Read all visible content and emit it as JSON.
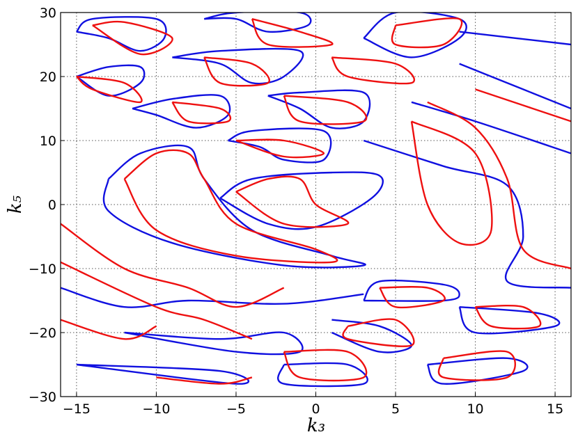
{
  "chart_data": {
    "type": "contour",
    "xlabel": "k₃",
    "ylabel": "k₅",
    "xlim": [
      -16,
      16
    ],
    "ylim": [
      -30,
      30
    ],
    "xticks": [
      {
        "value": -15,
        "label": "−15"
      },
      {
        "value": -10,
        "label": "−10"
      },
      {
        "value": -5,
        "label": "−5"
      },
      0,
      5,
      10,
      15
    ],
    "yticks": [
      {
        "value": -30,
        "label": "−30"
      },
      {
        "value": -20,
        "label": "−20"
      },
      {
        "value": -10,
        "label": "−10"
      },
      0,
      10,
      20,
      30
    ],
    "grid": true,
    "series": [
      {
        "color": "#1010e0",
        "x": [
          -15,
          -14,
          -10,
          -9.5,
          -11,
          -13,
          -15,
          null,
          -7,
          -5,
          -1,
          -0.5,
          -3,
          -5,
          -7,
          null,
          -15,
          -13,
          -11,
          -11,
          -13,
          -15,
          null,
          -9,
          -6,
          -1,
          -2,
          -4,
          -6,
          -9,
          null,
          -11.5,
          -9,
          -6,
          -5.5,
          -7.5,
          -10,
          -11.5,
          null,
          -3,
          -1,
          3,
          3,
          1,
          -1,
          -3,
          null,
          -5.5,
          -4,
          0.5,
          0.5,
          -2,
          -3.5,
          -5.5,
          null,
          -6,
          -4,
          1,
          4,
          3.5,
          0,
          -3,
          -6,
          null,
          -13,
          -11,
          -8,
          -7,
          -4,
          1,
          3,
          -2,
          -9,
          -13,
          -13,
          null,
          3,
          5,
          9,
          9,
          6,
          3,
          null,
          9,
          16,
          null,
          9,
          13,
          16,
          null,
          6,
          10,
          16,
          null,
          3,
          8,
          12,
          13,
          12,
          16,
          null,
          -16,
          -12,
          -8,
          -2,
          3,
          null,
          -12,
          -6,
          -2,
          -1,
          -5,
          -12,
          null,
          -15,
          -6,
          -5,
          -15,
          null,
          1,
          4,
          6,
          4,
          1,
          null,
          3,
          8,
          9,
          8,
          4,
          3,
          null,
          9,
          14,
          15,
          10,
          9,
          null,
          7,
          12,
          13,
          8,
          7,
          null,
          -2,
          2,
          3,
          -2,
          -2
        ],
        "values": [
          27,
          29,
          29,
          26,
          24,
          26,
          27,
          null,
          29,
          30,
          30,
          28,
          27,
          29,
          29,
          null,
          20,
          21.5,
          21.5,
          19,
          17,
          20,
          null,
          23,
          24,
          24,
          20,
          19,
          22,
          23,
          null,
          15,
          16.5,
          17,
          14,
          12,
          14,
          15,
          null,
          17,
          17.5,
          17.5,
          13,
          12,
          15,
          17,
          null,
          10,
          11.5,
          11.5,
          7,
          7,
          9,
          10,
          null,
          1,
          4,
          5,
          4.5,
          1,
          -3.5,
          -3,
          1,
          null,
          4,
          8,
          9,
          4,
          -4,
          -8,
          -9.5,
          -9.5,
          -6,
          -1,
          4,
          null,
          26,
          30,
          29,
          26,
          23,
          26,
          null,
          27,
          25,
          null,
          22,
          18,
          15,
          null,
          16,
          13,
          8,
          null,
          10,
          6,
          3,
          -5,
          -12,
          -13,
          null,
          -13,
          -16,
          -15,
          -15.5,
          -14,
          null,
          -20,
          -21,
          -20,
          -23,
          -23,
          -20,
          null,
          -25,
          -26,
          -28,
          -25,
          null,
          -18,
          -19,
          -22,
          -23,
          -20,
          null,
          -15,
          -15,
          -14,
          -12.5,
          -12,
          -15,
          null,
          -16,
          -17,
          -19,
          -20,
          -16,
          null,
          -25,
          -24,
          -26,
          -28,
          -25,
          null,
          -25,
          -25,
          -28,
          -28,
          -25
        ]
      },
      {
        "color": "#ee1010",
        "x": [
          -14,
          -12,
          -9,
          -11,
          -14,
          null,
          -4,
          -1,
          1,
          -3,
          -4,
          null,
          -15,
          -12,
          -11,
          -14,
          -15,
          null,
          -7,
          -4,
          -3,
          -6,
          -7,
          null,
          -9,
          -6,
          -5.5,
          -8,
          -9,
          null,
          -2,
          2,
          3,
          -1,
          -2,
          null,
          -5,
          -2,
          0.5,
          -2,
          -5,
          null,
          -5,
          -3,
          -1,
          0,
          2,
          -2,
          -5,
          null,
          -12,
          -10,
          -8,
          -7,
          -5,
          0,
          1,
          -5,
          -10,
          -12,
          null,
          5,
          9,
          8,
          5,
          5,
          null,
          1,
          5,
          6,
          2,
          1,
          null,
          7,
          10,
          12,
          13,
          16,
          null,
          10,
          16,
          null,
          6,
          10,
          11,
          9,
          7,
          6,
          null,
          -16,
          -12,
          -8,
          -5,
          -2,
          null,
          -16,
          -10,
          -7,
          -4,
          null,
          -16,
          -12,
          -10,
          null,
          -10,
          -6,
          -4,
          null,
          2,
          5,
          6,
          2,
          2,
          null,
          4,
          7,
          8,
          5,
          4,
          null,
          10,
          13,
          14,
          11,
          10,
          null,
          -2,
          2,
          3,
          -1,
          -2,
          null,
          8,
          12,
          12,
          8,
          8
        ],
        "values": [
          28,
          28.5,
          26,
          23.5,
          28,
          null,
          29,
          27,
          25,
          25,
          29,
          null,
          20,
          19,
          16,
          18,
          20,
          null,
          23,
          22,
          19,
          19,
          23,
          null,
          16,
          15,
          13,
          13,
          16,
          null,
          17,
          16,
          13,
          13,
          17,
          null,
          10,
          10,
          8,
          7.5,
          10,
          null,
          2,
          4,
          4,
          0,
          -3,
          -3,
          2,
          null,
          4,
          8,
          8,
          4,
          -3,
          -7,
          -9,
          -8,
          -4,
          4,
          null,
          28,
          29,
          25,
          25,
          28,
          null,
          23,
          22,
          19,
          20,
          23,
          null,
          16,
          12,
          4,
          -7,
          -10,
          null,
          18,
          13,
          null,
          13,
          8,
          -4,
          -6,
          0,
          13,
          null,
          -3,
          -10,
          -13,
          -16,
          -13,
          null,
          -9,
          -16,
          -18,
          -21,
          null,
          -18,
          -21,
          -19,
          null,
          -27,
          -28,
          -27,
          null,
          -19,
          -18,
          -22,
          -21,
          -19,
          null,
          -13,
          -13,
          -15,
          -16,
          -13,
          null,
          -16,
          -16,
          -19,
          -19,
          -16,
          null,
          -23,
          -23,
          -27,
          -27,
          -23,
          null,
          -24,
          -23,
          -27,
          -27,
          -24
        ]
      }
    ]
  }
}
